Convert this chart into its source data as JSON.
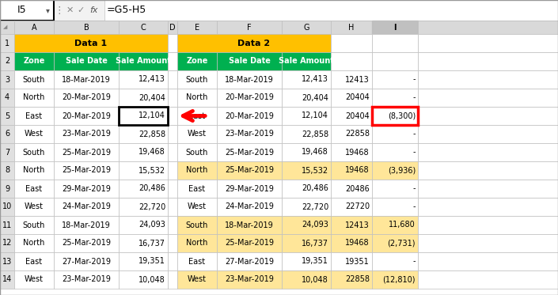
{
  "formula_bar_cell": "I5",
  "formula_bar_formula": "=G5-H5",
  "data1_header": "Data 1",
  "data2_header": "Data 2",
  "data1": [
    [
      "South",
      "18-Mar-2019",
      "12,413"
    ],
    [
      "North",
      "20-Mar-2019",
      "20,404"
    ],
    [
      "East",
      "20-Mar-2019",
      "12,104"
    ],
    [
      "West",
      "23-Mar-2019",
      "22,858"
    ],
    [
      "South",
      "25-Mar-2019",
      "19,468"
    ],
    [
      "North",
      "25-Mar-2019",
      "15,532"
    ],
    [
      "East",
      "29-Mar-2019",
      "20,486"
    ],
    [
      "West",
      "24-Mar-2019",
      "22,720"
    ],
    [
      "South",
      "18-Mar-2019",
      "24,093"
    ],
    [
      "North",
      "25-Mar-2019",
      "16,737"
    ],
    [
      "East",
      "27-Mar-2019",
      "19,351"
    ],
    [
      "West",
      "23-Mar-2019",
      "10,048"
    ]
  ],
  "data2": [
    [
      "South",
      "18-Mar-2019",
      "12,413"
    ],
    [
      "North",
      "20-Mar-2019",
      "20,404"
    ],
    [
      "East",
      "20-Mar-2019",
      "12,104"
    ],
    [
      "West",
      "23-Mar-2019",
      "22,858"
    ],
    [
      "South",
      "25-Mar-2019",
      "19,468"
    ],
    [
      "North",
      "25-Mar-2019",
      "15,532"
    ],
    [
      "East",
      "29-Mar-2019",
      "20,486"
    ],
    [
      "West",
      "24-Mar-2019",
      "22,720"
    ],
    [
      "South",
      "18-Mar-2019",
      "24,093"
    ],
    [
      "North",
      "25-Mar-2019",
      "16,737"
    ],
    [
      "East",
      "27-Mar-2019",
      "19,351"
    ],
    [
      "West",
      "23-Mar-2019",
      "10,048"
    ]
  ],
  "col_h_vals": [
    "12413",
    "20404",
    "20404",
    "22858",
    "19468",
    "19468",
    "20486",
    "22720",
    "12413",
    "19468",
    "19351",
    "22858"
  ],
  "col_i_vals": [
    "-",
    "-",
    "(8,300)",
    "-",
    "-",
    "(3,936)",
    "-",
    "-",
    "11,680",
    "(2,731)",
    "-",
    "(12,810)"
  ],
  "yellow_rows": [
    5,
    8,
    9,
    11
  ],
  "color_gold_header": "#FFC000",
  "color_green_header": "#00B050",
  "color_yellow_row": "#FFE699",
  "color_white": "#FFFFFF",
  "color_grid": "#BFBFBF",
  "color_col_header_bg": "#D9D9D9",
  "color_row_header_bg": "#E0E0E0",
  "color_selected_col_i": "#C0C0C0",
  "color_formula_bar_bg": "#F2F2F2"
}
